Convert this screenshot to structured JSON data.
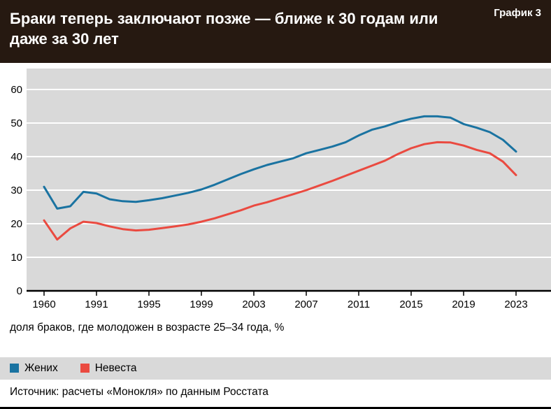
{
  "header": {
    "title": "Браки теперь заключают позже — ближе к 30 годам или даже за 30 лет",
    "chart_number": "График 3"
  },
  "caption": "доля браков, где молодожен в возрасте 25–34 года, %",
  "source": "Источник: расчеты «Монокля» по данным Росстата",
  "legend": [
    {
      "label": "Жених",
      "color": "#1a73a1"
    },
    {
      "label": "Невеста",
      "color": "#ea4a40"
    }
  ],
  "colors": {
    "header_bg": "#261911",
    "panel_bg": "#d9d9d9",
    "grid": "#ffffff",
    "axis": "#000000",
    "groom_line": "#1a73a1",
    "bride_line": "#ea4a40"
  },
  "chart_data": {
    "type": "line",
    "title": "Браки теперь заключают позже — ближе к 30 годам или даже за 30 лет",
    "xlabel": "",
    "ylabel": "доля браков, где молодожен в возрасте 25–34 года, %",
    "ylim": [
      0,
      60
    ],
    "yticks": [
      0,
      10,
      20,
      30,
      40,
      50,
      60
    ],
    "grid": true,
    "legend_position": "bottom",
    "x": [
      1960,
      1970,
      1980,
      1990,
      1991,
      1992,
      1993,
      1994,
      1995,
      1996,
      1997,
      1998,
      1999,
      2000,
      2001,
      2002,
      2003,
      2004,
      2005,
      2006,
      2007,
      2008,
      2009,
      2010,
      2011,
      2012,
      2013,
      2014,
      2015,
      2016,
      2017,
      2018,
      2019,
      2020,
      2021,
      2022,
      2023
    ],
    "x_tick_labels": [
      "1960",
      "1991",
      "1995",
      "1999",
      "2003",
      "2007",
      "2011",
      "2015",
      "2019",
      "2023"
    ],
    "series": [
      {
        "name": "Жених",
        "color": "#1a73a1",
        "values": [
          31,
          24.5,
          25.2,
          29.5,
          29,
          27.3,
          26.7,
          26.5,
          27,
          27.6,
          28.4,
          29.2,
          30.2,
          31.6,
          33.2,
          34.8,
          36.2,
          37.5,
          38.5,
          39.5,
          41,
          42,
          43,
          44.3,
          46.3,
          48,
          49,
          50.3,
          51.3,
          52,
          52,
          51.6,
          49.7,
          48.6,
          47.3,
          45,
          41.5
        ]
      },
      {
        "name": "Невеста",
        "color": "#ea4a40",
        "values": [
          21,
          15.3,
          18.6,
          20.6,
          20.2,
          19.2,
          18.4,
          18,
          18.2,
          18.7,
          19.2,
          19.8,
          20.6,
          21.6,
          22.8,
          24,
          25.4,
          26.4,
          27.6,
          28.8,
          30,
          31.4,
          32.8,
          34.3,
          35.8,
          37.3,
          38.8,
          40.8,
          42.5,
          43.7,
          44.3,
          44.2,
          43.3,
          42,
          41,
          38.5,
          34.5
        ]
      }
    ]
  }
}
